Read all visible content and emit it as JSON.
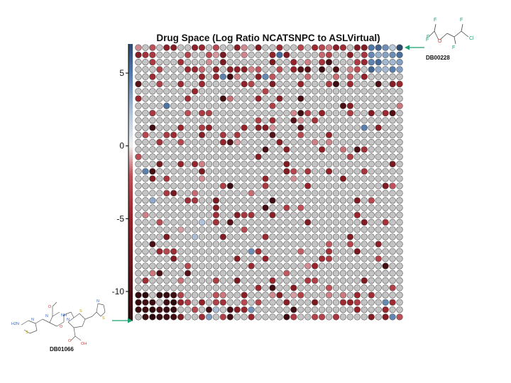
{
  "chart_data": {
    "type": "heatmap",
    "title": "Drug Space (Log Ratio NCATSNPC to ASLVirtual)",
    "colorbar": {
      "ticks": [
        5,
        0,
        -5,
        -10
      ],
      "range": [
        -12,
        7
      ],
      "colors": {
        "high": "#2c4a6e",
        "mid_high": "#b9c9dc",
        "zero": "#f2f2f2",
        "mid_low": "#b03038",
        "low": "#2a0a0e"
      }
    },
    "grid": {
      "rows": 38,
      "cols": 38,
      "empty_color": "#c4c4c4"
    },
    "cells": "ROWS_SEE_SCRIPT",
    "annotations": [
      {
        "label": "DB00228",
        "anchor": "top-right",
        "molecule": "fluorinated ether"
      },
      {
        "label": "DB01066",
        "anchor": "bottom-left",
        "molecule": "cephalosporin"
      }
    ],
    "molecule_atoms": {
      "db00228": [
        "F",
        "F",
        "F",
        "O",
        "F",
        "F",
        "Cl"
      ],
      "db01066": [
        "NH",
        "O",
        "N",
        "N",
        "S",
        "N",
        "S",
        "O",
        "OH",
        "O",
        "H2N",
        "N",
        "S"
      ]
    }
  }
}
